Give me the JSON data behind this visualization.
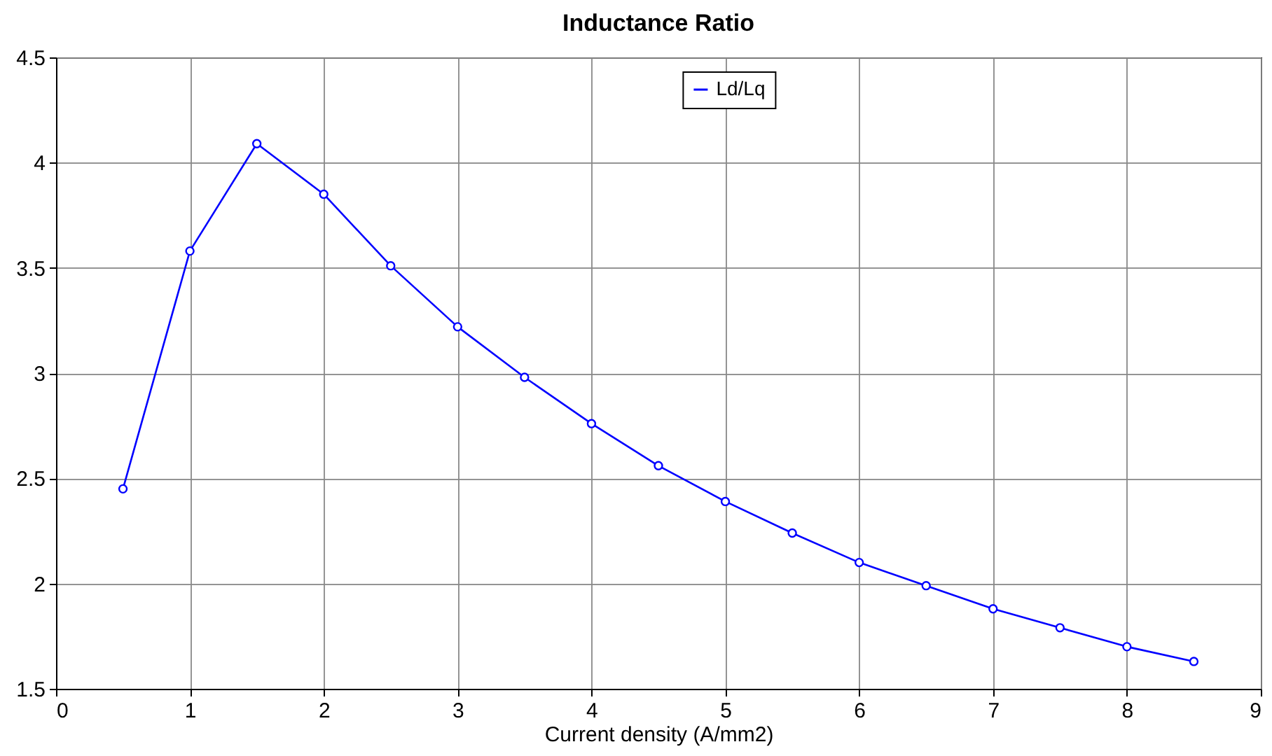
{
  "chart_data": {
    "type": "line",
    "title": "Inductance Ratio",
    "xlabel": "Current density (A/mm2)",
    "x": [
      0.5,
      1,
      1.5,
      2,
      2.5,
      3,
      3.5,
      4,
      4.5,
      5,
      5.5,
      6,
      6.5,
      7,
      7.5,
      8,
      8.5
    ],
    "series": [
      {
        "name": "Ld/Lq",
        "color": "#0000ff",
        "values": [
          2.45,
          3.58,
          4.09,
          3.85,
          3.51,
          3.22,
          2.98,
          2.76,
          2.56,
          2.39,
          2.24,
          2.1,
          1.99,
          1.88,
          1.79,
          1.7,
          1.63
        ]
      }
    ],
    "xlim": [
      0,
      9
    ],
    "xticks": [
      0,
      1,
      2,
      3,
      4,
      5,
      6,
      7,
      8,
      9
    ],
    "ylim": [
      1.5,
      4.5
    ],
    "yticks": [
      1.5,
      2,
      2.5,
      3,
      3.5,
      4,
      4.5
    ],
    "grid": true,
    "legend": "top",
    "marker": "circle",
    "line_style": "solid"
  }
}
